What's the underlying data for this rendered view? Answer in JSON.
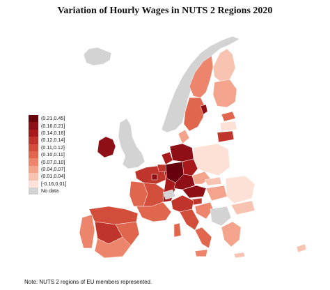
{
  "title": "Variation of Hourly Wages in NUTS 2 Regions 2020",
  "legend": [
    {
      "label": "(0.21,0.45]",
      "color": "#67000d"
    },
    {
      "label": "(0.16,0.21]",
      "color": "#8e0f16"
    },
    {
      "label": "(0.14,0.16]",
      "color": "#a8191b"
    },
    {
      "label": "(0.12,0.14]",
      "color": "#c0352b"
    },
    {
      "label": "(0.11,0.12]",
      "color": "#d24d3a"
    },
    {
      "label": "(0.10,0.11]",
      "color": "#e0664e"
    },
    {
      "label": "(0.07,0.10]",
      "color": "#ed856c"
    },
    {
      "label": "(0.04,0.07]",
      "color": "#f4a48d"
    },
    {
      "label": "(0.01,0.04]",
      "color": "#f9c3b1"
    },
    {
      "label": "[-0.16,0.01]",
      "color": "#fde0d6"
    },
    {
      "label": "No data",
      "color": "#d3d3d3"
    }
  ],
  "note": "Note: NUTS 2 regions of EU members represented."
}
